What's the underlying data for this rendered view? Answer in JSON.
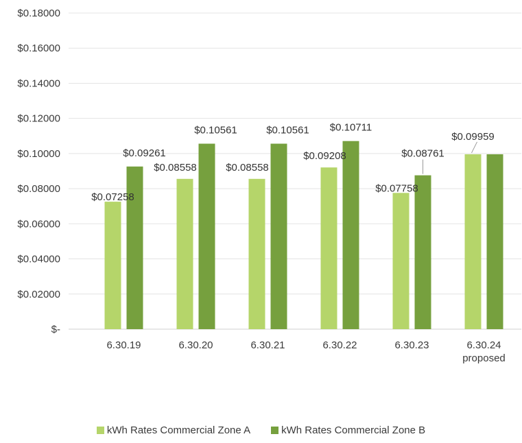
{
  "chart_data": {
    "type": "bar",
    "title": "",
    "xlabel": "",
    "ylabel": "",
    "categories": [
      "6.30.19",
      "6.30.20",
      "6.30.21",
      "6.30.22",
      "6.30.23",
      "6.30.24 proposed"
    ],
    "series": [
      {
        "name": "kWh Rates Commercial Zone A",
        "color": "#b5d56a",
        "values": [
          0.07258,
          0.08558,
          0.08558,
          0.09208,
          0.07758,
          0.09959
        ],
        "labels": [
          "$0.07258",
          "$0.08558",
          "$0.08558",
          "$0.09208",
          "$0.07758",
          "$0.09959"
        ]
      },
      {
        "name": "kWh Rates Commercial Zone B",
        "color": "#76a03e",
        "values": [
          0.09261,
          0.10561,
          0.10561,
          0.10711,
          0.08761,
          0.09959
        ],
        "labels": [
          "$0.09261",
          "$0.10561",
          "$0.10561",
          "$0.10711",
          "$0.08761",
          ""
        ]
      }
    ],
    "ylim": [
      0,
      0.18
    ],
    "yticks": [
      0,
      0.02,
      0.04,
      0.06,
      0.08,
      0.1,
      0.12,
      0.14,
      0.16,
      0.18
    ],
    "ytick_labels": [
      "$-",
      "$0.02000",
      "$0.04000",
      "$0.06000",
      "$0.08000",
      "$0.10000",
      "$0.12000",
      "$0.14000",
      "$0.16000",
      "$0.18000"
    ],
    "grid": true,
    "legend_position": "bottom"
  }
}
